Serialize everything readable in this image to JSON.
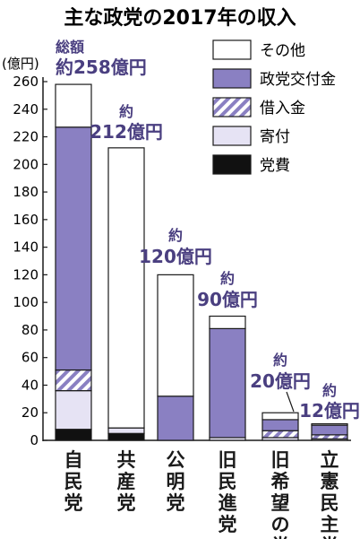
{
  "chart_data": {
    "type": "bar",
    "stacked": true,
    "title": "主な政党の2017年の収入",
    "ylabel": "(億円)",
    "ylim": [
      0,
      260
    ],
    "yticks": [
      0,
      20,
      40,
      60,
      80,
      100,
      120,
      140,
      160,
      180,
      200,
      220,
      240,
      260
    ],
    "grid": false,
    "legend_position": "top-right",
    "categories": [
      "自民党",
      "共産党",
      "公明党",
      "旧民進党",
      "旧希望の党",
      "立憲民主党"
    ],
    "totals": [
      {
        "line1": "総額",
        "line2": "約258億円",
        "value": 258
      },
      {
        "line1": "約",
        "line2": "212億円",
        "value": 212
      },
      {
        "line1": "約",
        "line2": "120億円",
        "value": 120
      },
      {
        "line1": "約",
        "line2": "90億円",
        "value": 90
      },
      {
        "line1": "約",
        "line2": "20億円",
        "value": 20
      },
      {
        "line1": "約",
        "line2": "12億円",
        "value": 12
      }
    ],
    "series": [
      {
        "name": "党費",
        "key": "dues",
        "color": "#111111",
        "pattern": "solid",
        "values": [
          8,
          5,
          0,
          0,
          0,
          0
        ]
      },
      {
        "name": "寄付",
        "key": "donation",
        "color": "#e6e3f4",
        "pattern": "solid",
        "values": [
          28,
          4,
          0,
          2,
          2,
          1
        ]
      },
      {
        "name": "借入金",
        "key": "loan",
        "color": "#8a80c2",
        "pattern": "hatch",
        "values": [
          15,
          0,
          0,
          0,
          5,
          3
        ]
      },
      {
        "name": "政党交付金",
        "key": "subsidy",
        "color": "#8a80c2",
        "pattern": "solid",
        "values": [
          176,
          0,
          32,
          79,
          8,
          7
        ]
      },
      {
        "name": "その他",
        "key": "other",
        "color": "#ffffff",
        "pattern": "solid",
        "values": [
          31,
          203,
          88,
          9,
          5,
          1
        ]
      }
    ],
    "legend": [
      {
        "label": "その他",
        "key": "other"
      },
      {
        "label": "政党交付金",
        "key": "subsidy"
      },
      {
        "label": "借入金",
        "key": "loan"
      },
      {
        "label": "寄付",
        "key": "donation"
      },
      {
        "label": "党費",
        "key": "dues"
      }
    ]
  }
}
